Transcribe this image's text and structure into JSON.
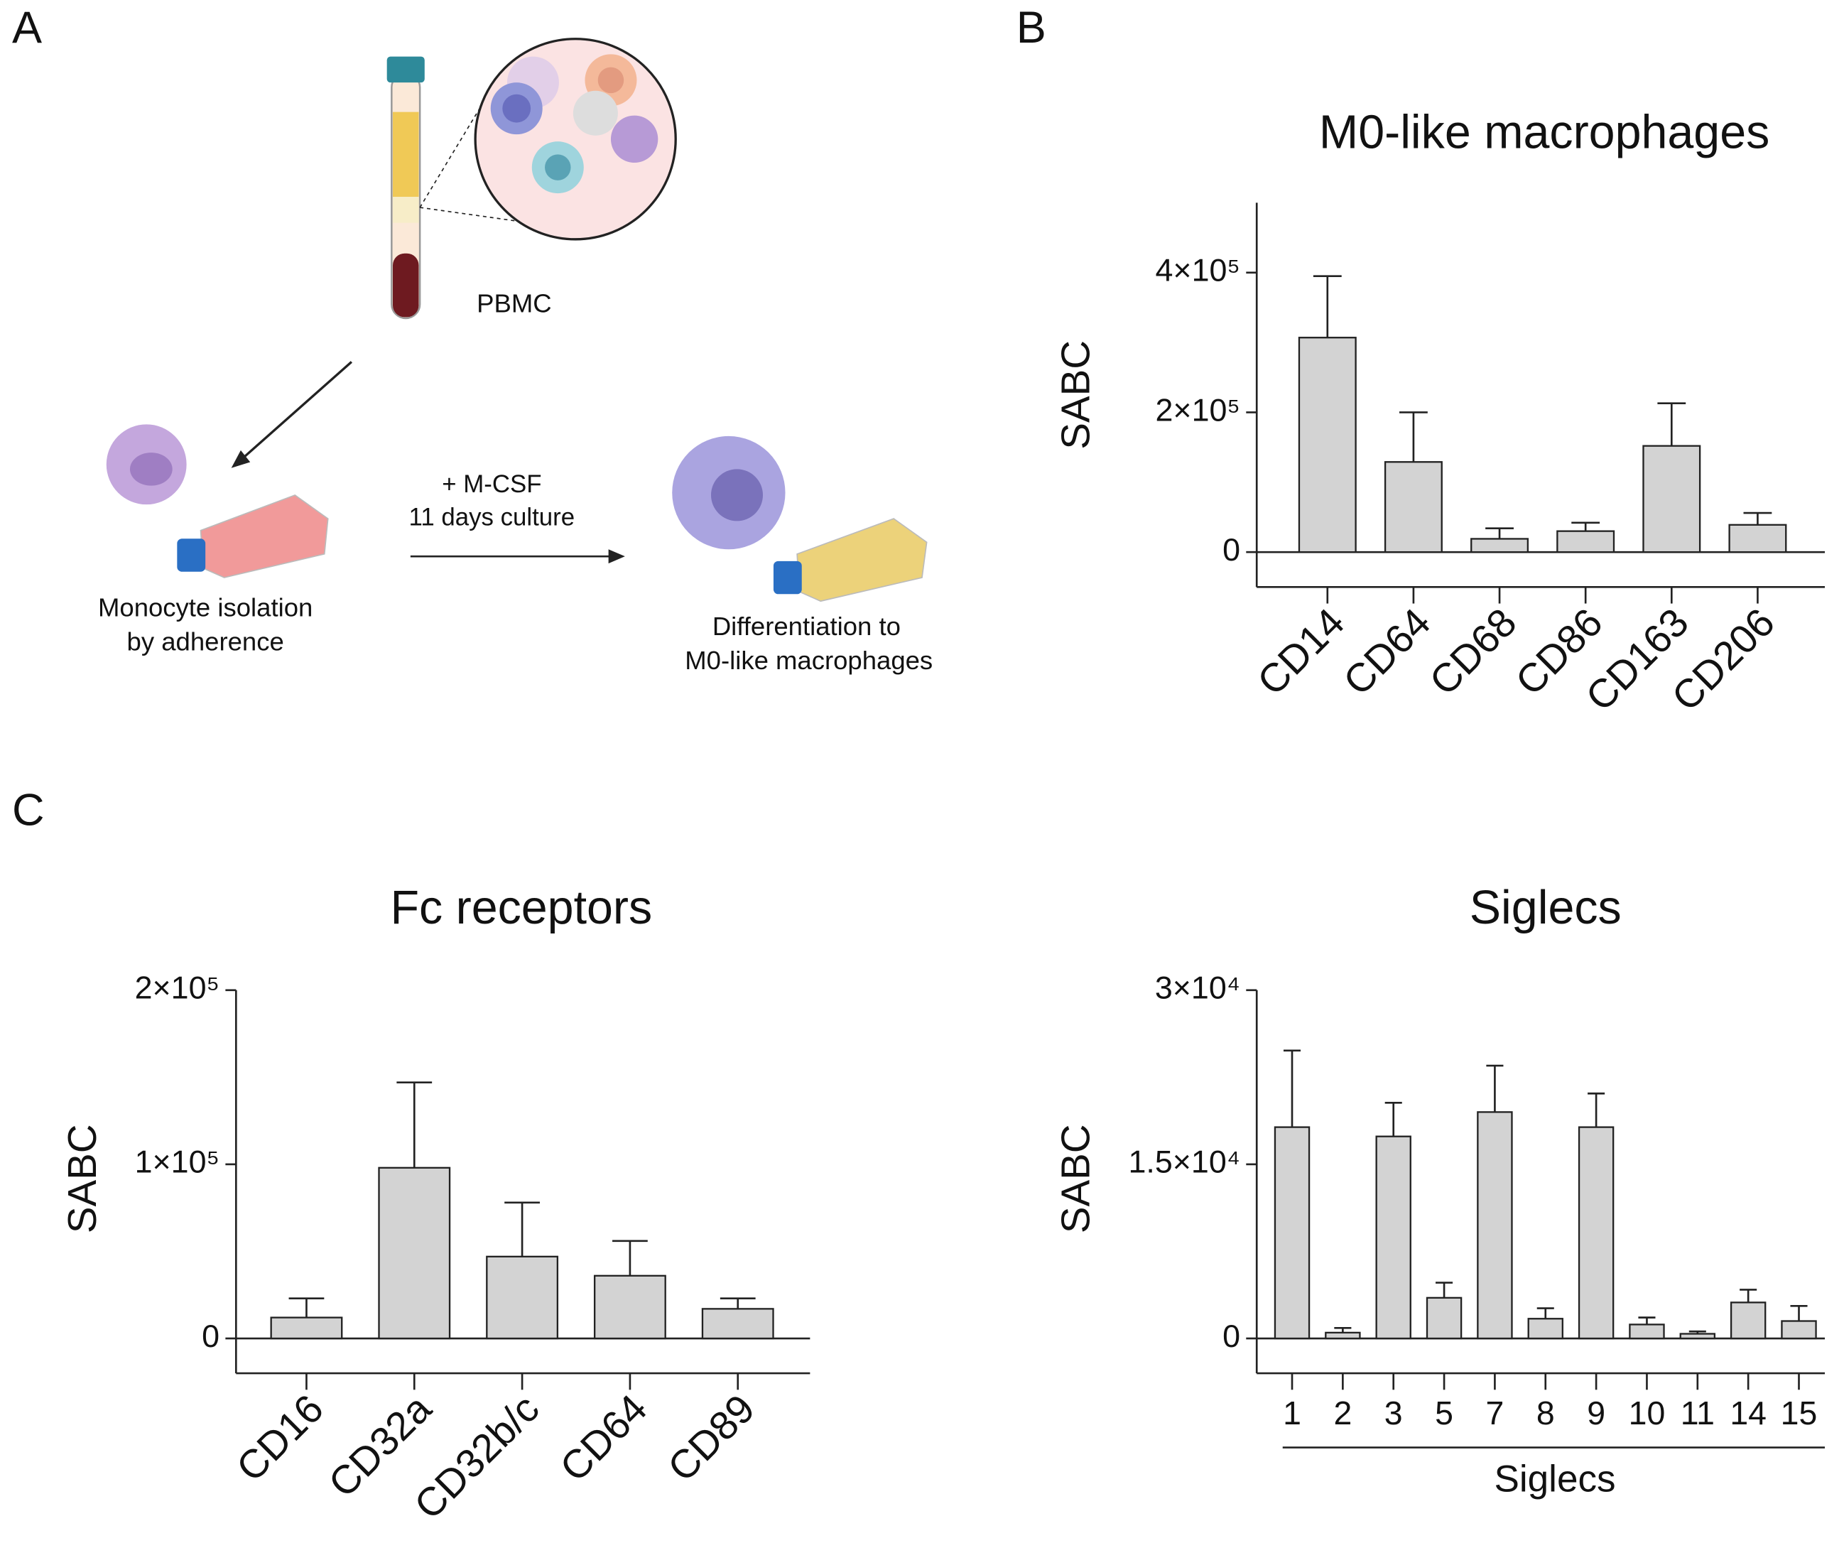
{
  "panels": [
    "A",
    "B",
    "C"
  ],
  "diagram": {
    "pbmc": "PBMC",
    "monocyte": [
      "Monocyte isolation",
      "by adherence"
    ],
    "treatment": [
      "+ M-CSF",
      "11 days culture"
    ],
    "differentiation": [
      "Differentiation to",
      "M0-like macrophages"
    ]
  },
  "chart_data": [
    {
      "type": "bar",
      "title": "M0-like macrophages",
      "ylabel": "SABC",
      "categories": [
        "CD14",
        "CD64",
        "CD68",
        "CD86",
        "CD163",
        "CD206"
      ],
      "values": [
        307000,
        129000,
        19000,
        30000,
        152000,
        39000
      ],
      "errors": [
        88000,
        71000,
        15000,
        12000,
        61000,
        17000
      ],
      "color": "#d3d3d3",
      "ylim": [
        -50000,
        500000
      ],
      "yticks": [
        0,
        {
          "value": 200000,
          "label": "2×10⁵"
        },
        {
          "value": 400000,
          "label": "4×10⁵"
        }
      ],
      "rotate_labels": true
    },
    {
      "type": "bar",
      "title": "Fc receptors",
      "ylabel": "SABC",
      "categories": [
        "CD16",
        "CD32a",
        "CD32b/c",
        "CD64",
        "CD89"
      ],
      "values": [
        12000,
        98000,
        47000,
        36000,
        17000
      ],
      "errors": [
        11000,
        49000,
        31000,
        20000,
        6000
      ],
      "color": "#d3d3d3",
      "ylim": [
        -20000,
        200000
      ],
      "yticks": [
        0,
        {
          "value": 100000,
          "label": "1×10⁵"
        },
        {
          "value": 200000,
          "label": "2×10⁵"
        }
      ],
      "rotate_labels": true
    },
    {
      "type": "bar",
      "title": "Siglecs",
      "ylabel": "SABC",
      "xlabel": "Siglecs",
      "categories": [
        "1",
        "2",
        "3",
        "5",
        "7",
        "8",
        "9",
        "10",
        "11",
        "14",
        "15"
      ],
      "values": [
        18200,
        500,
        17400,
        3500,
        19500,
        1700,
        18200,
        1200,
        400,
        3100,
        1500
      ],
      "errors": [
        6600,
        400,
        2900,
        1300,
        4000,
        900,
        2900,
        600,
        200,
        1100,
        1300
      ],
      "color": "#d3d3d3",
      "ylim": [
        -3000,
        30000
      ],
      "yticks": [
        0,
        {
          "value": 15000,
          "label": "1.5×10⁴"
        },
        {
          "value": 30000,
          "label": "3×10⁴"
        }
      ],
      "rotate_labels": false
    }
  ]
}
